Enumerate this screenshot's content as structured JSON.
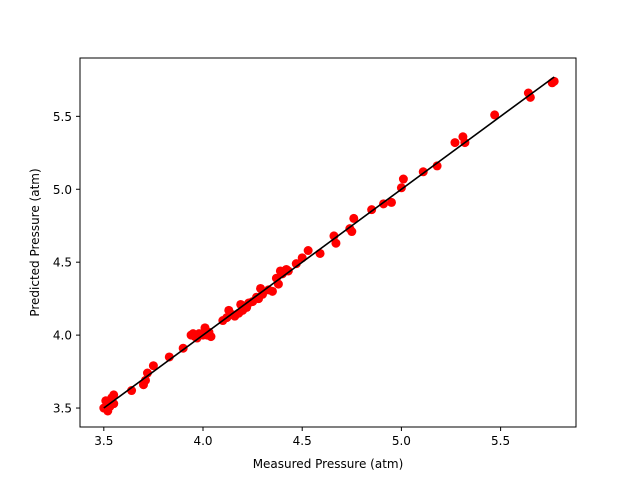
{
  "chart_data": {
    "type": "scatter",
    "title": "",
    "xlabel": "Measured Pressure (atm)",
    "ylabel": "Predicted Pressure (atm)",
    "xlim": [
      3.38,
      5.88
    ],
    "ylim": [
      3.37,
      5.9
    ],
    "xticks": [
      3.5,
      4.0,
      4.5,
      5.0,
      5.5
    ],
    "xtick_labels": [
      "3.5",
      "4.0",
      "4.5",
      "5.0",
      "5.5"
    ],
    "yticks": [
      3.5,
      4.0,
      4.5,
      5.0,
      5.5
    ],
    "ytick_labels": [
      "3.5",
      "4.0",
      "4.5",
      "5.0",
      "5.5"
    ],
    "grid": false,
    "legend": "none",
    "series": [
      {
        "marker_color": "#ff0000",
        "x": [
          3.5,
          3.51,
          3.52,
          3.53,
          3.54,
          3.55,
          3.55,
          3.64,
          3.7,
          3.71,
          3.72,
          3.75,
          3.83,
          3.9,
          3.94,
          3.95,
          3.96,
          3.97,
          3.98,
          4.0,
          4.01,
          4.02,
          4.03,
          4.04,
          4.1,
          4.12,
          4.13,
          4.15,
          4.16,
          4.18,
          4.19,
          4.2,
          4.22,
          4.23,
          4.25,
          4.27,
          4.28,
          4.29,
          4.3,
          4.33,
          4.35,
          4.37,
          4.38,
          4.39,
          4.4,
          4.42,
          4.43,
          4.47,
          4.5,
          4.53,
          4.59,
          4.66,
          4.67,
          4.74,
          4.75,
          4.76,
          4.85,
          4.91,
          4.95,
          5.0,
          5.01,
          5.11,
          5.18,
          5.27,
          5.31,
          5.32,
          5.47,
          5.64,
          5.65,
          5.76,
          5.77
        ],
        "y": [
          3.5,
          3.55,
          3.48,
          3.51,
          3.57,
          3.53,
          3.59,
          3.62,
          3.66,
          3.69,
          3.74,
          3.79,
          3.85,
          3.91,
          4.0,
          4.01,
          3.99,
          3.98,
          4.01,
          4.0,
          4.05,
          4.0,
          4.02,
          3.99,
          4.1,
          4.12,
          4.17,
          4.14,
          4.13,
          4.15,
          4.21,
          4.17,
          4.19,
          4.22,
          4.23,
          4.26,
          4.25,
          4.32,
          4.28,
          4.31,
          4.3,
          4.39,
          4.35,
          4.44,
          4.42,
          4.45,
          4.44,
          4.49,
          4.53,
          4.58,
          4.56,
          4.68,
          4.63,
          4.73,
          4.71,
          4.8,
          4.86,
          4.9,
          4.91,
          5.01,
          5.07,
          5.12,
          5.16,
          5.32,
          5.36,
          5.32,
          5.51,
          5.66,
          5.63,
          5.73,
          5.74
        ]
      }
    ],
    "reference_line": {
      "color": "#000000",
      "x": [
        3.5,
        5.77
      ],
      "y": [
        3.5,
        5.77
      ]
    }
  }
}
